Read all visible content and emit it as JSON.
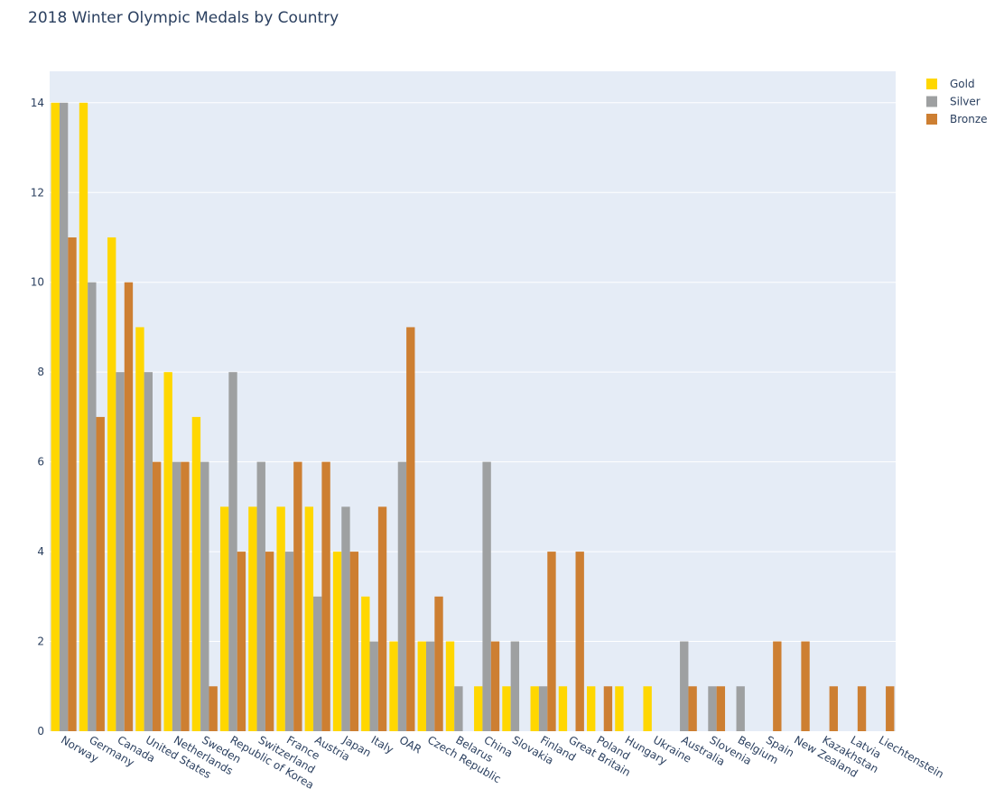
{
  "chart_data": {
    "type": "bar",
    "title": "2018 Winter Olympic Medals by Country",
    "xlabel": "",
    "ylabel": "",
    "ylim": [
      0,
      14.7
    ],
    "yticks": [
      0,
      2,
      4,
      6,
      8,
      10,
      12,
      14
    ],
    "grid": true,
    "legend_position": "top-right",
    "categories": [
      "Norway",
      "Germany",
      "Canada",
      "United States",
      "Netherlands",
      "Sweden",
      "Republic of Korea",
      "Switzerland",
      "France",
      "Austria",
      "Japan",
      "Italy",
      "OAR",
      "Czech Republic",
      "Belarus",
      "China",
      "Slovakia",
      "Finland",
      "Great Britain",
      "Poland",
      "Hungary",
      "Ukraine",
      "Australia",
      "Slovenia",
      "Belgium",
      "Spain",
      "New Zealand",
      "Kazakhstan",
      "Latvia",
      "Liechtenstein"
    ],
    "series": [
      {
        "name": "Gold",
        "color": "#FFD700",
        "values": [
          14,
          14,
          11,
          9,
          8,
          7,
          5,
          5,
          5,
          5,
          4,
          3,
          2,
          2,
          2,
          1,
          1,
          1,
          1,
          1,
          1,
          1,
          0,
          0,
          0,
          0,
          0,
          0,
          0,
          0
        ]
      },
      {
        "name": "Silver",
        "color": "#9EA0A1",
        "values": [
          14,
          10,
          8,
          8,
          6,
          6,
          8,
          6,
          4,
          3,
          5,
          2,
          6,
          2,
          1,
          6,
          2,
          1,
          0,
          0,
          0,
          0,
          2,
          1,
          1,
          0,
          0,
          0,
          0,
          0
        ]
      },
      {
        "name": "Bronze",
        "color": "#CD7F32",
        "values": [
          11,
          7,
          10,
          6,
          6,
          1,
          4,
          4,
          6,
          6,
          4,
          5,
          9,
          3,
          0,
          2,
          0,
          4,
          4,
          1,
          0,
          0,
          1,
          1,
          0,
          2,
          2,
          1,
          1,
          1
        ]
      }
    ]
  }
}
